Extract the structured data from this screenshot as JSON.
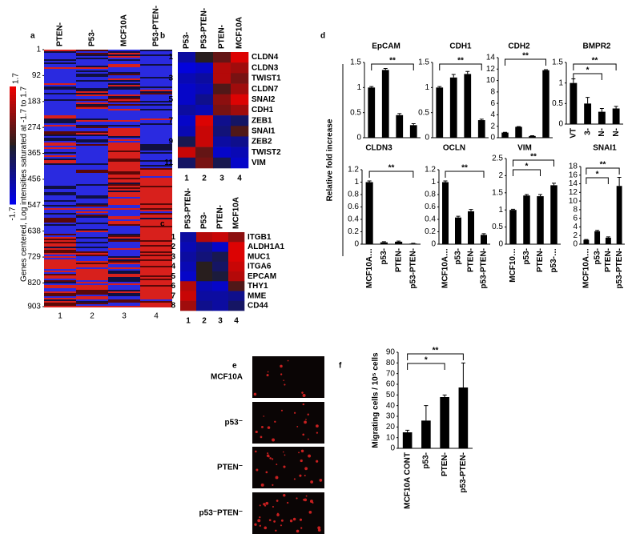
{
  "chart_data": [
    {
      "type": "heatmap-overview",
      "panel": "a",
      "columns": [
        "PTEN-",
        "P53-",
        "MCF10A",
        "P53-PTEN-"
      ],
      "yticks": [
        1,
        92,
        183,
        274,
        365,
        456,
        547,
        638,
        729,
        820,
        903
      ],
      "ylim": [
        1,
        903
      ],
      "column_numbers": [
        1,
        2,
        3,
        4
      ],
      "clim": [
        -1.7,
        1.7
      ],
      "colorbar_label": "Genes centered, Log intensities saturated at -1.7 to 1.7"
    },
    {
      "type": "heatmap",
      "panel": "b",
      "columns": [
        "P53-",
        "P53-PTEN-",
        "PTEN-",
        "MCF10A"
      ],
      "rows": [
        "CLDN4",
        "CLDN3",
        "TWIST1",
        "CLDN7",
        "SNAI2",
        "CDH1",
        "ZEB1",
        "SNAI1",
        "ZEB2",
        "TWIST2",
        "VIM"
      ],
      "row_numbers": [
        1,
        null,
        3,
        null,
        5,
        null,
        7,
        null,
        9,
        null,
        11
      ],
      "column_numbers": [
        1,
        2,
        3,
        4
      ],
      "clim": [
        -1,
        1
      ],
      "values": [
        [
          -0.6,
          0,
          0.3,
          0.9
        ],
        [
          -0.9,
          -0.8,
          0.7,
          0.6
        ],
        [
          -0.7,
          -0.6,
          0.7,
          0.4
        ],
        [
          -0.8,
          -0.7,
          0.2,
          0.6
        ],
        [
          -0.8,
          -0.5,
          0.5,
          0.9
        ],
        [
          -0.6,
          -0.7,
          0.4,
          0.6
        ],
        [
          -0.8,
          0.9,
          -0.5,
          -0.3
        ],
        [
          -0.7,
          0.8,
          -0.4,
          0.2
        ],
        [
          -0.2,
          0.8,
          -0.6,
          -0.5
        ],
        [
          0.8,
          0.3,
          -0.8,
          -0.7
        ],
        [
          -0.3,
          0.4,
          -0.2,
          -0.8
        ]
      ]
    },
    {
      "type": "heatmap",
      "panel": "c",
      "columns": [
        "P53-PTEN-",
        "P53-",
        "PTEN-",
        "MCF10A"
      ],
      "rows": [
        "ITGB1",
        "ALDH1A1",
        "MUC1",
        "ITGA6",
        "EPCAM",
        "THY1",
        "MME",
        "CD44"
      ],
      "row_numbers": [
        1,
        2,
        3,
        4,
        5,
        6,
        7,
        8
      ],
      "column_numbers": [
        1,
        2,
        3,
        4
      ],
      "clim": [
        -1,
        1
      ],
      "values": [
        [
          -0.6,
          0.7,
          0.8,
          0.5
        ],
        [
          -0.7,
          -0.5,
          -0.8,
          0.9
        ],
        [
          -0.6,
          -0.4,
          -0.2,
          0.9
        ],
        [
          -0.7,
          0,
          -0.3,
          0.8
        ],
        [
          -0.8,
          0,
          -0.1,
          0.7
        ],
        [
          0.7,
          -0.7,
          -0.8,
          0.2
        ],
        [
          0.8,
          -0.6,
          -0.6,
          -0.5
        ],
        [
          0.6,
          -0.5,
          -0.6,
          -0.3
        ]
      ]
    },
    {
      "type": "bar",
      "panel": "d",
      "ylabel": "Relative fold increase",
      "title": "EpCAM",
      "categories": [
        null,
        null,
        null,
        null
      ],
      "values": [
        1.0,
        1.35,
        0.45,
        0.25
      ],
      "errors": [
        0.02,
        0.03,
        0.03,
        0.03
      ],
      "ylim": [
        0,
        1.5
      ],
      "yticks": [
        0,
        0.5,
        1,
        1.5
      ],
      "color": "#000000",
      "annotations": [
        "**"
      ]
    },
    {
      "type": "bar",
      "title": "CDH1",
      "categories": [
        null,
        null,
        null,
        null
      ],
      "values": [
        1.0,
        1.2,
        1.27,
        0.35
      ],
      "errors": [
        0.02,
        0.06,
        0.05,
        0.02
      ],
      "ylim": [
        0,
        1.5
      ],
      "yticks": [
        0,
        0.5,
        1,
        1.5
      ],
      "color": "#000000",
      "annotations": [
        "**"
      ]
    },
    {
      "type": "bar",
      "title": "CDH2",
      "categories": [
        null,
        null,
        null,
        null
      ],
      "values": [
        0.9,
        1.9,
        0.3,
        11.8
      ],
      "errors": [
        0.05,
        0.05,
        0.05,
        0.1
      ],
      "ylim": [
        0,
        14
      ],
      "yticks": [
        0,
        2,
        4,
        6,
        8,
        10,
        12,
        14
      ],
      "color": "#000000",
      "annotations": [
        "**"
      ]
    },
    {
      "type": "bar",
      "title": "BMPR2",
      "categories": [
        "VT",
        "3-",
        "N-",
        "N-"
      ],
      "values": [
        1.0,
        0.5,
        0.3,
        0.38
      ],
      "errors": [
        0.1,
        0.15,
        0.08,
        0.05
      ],
      "ylim": [
        0,
        1.5
      ],
      "yticks": [
        0,
        0.5,
        1,
        1.5
      ],
      "color": "#000000",
      "annotations": [
        "*",
        "**"
      ]
    },
    {
      "type": "bar",
      "title": "CLDN3",
      "categories": [
        "MCF10A…",
        "p53-",
        "PTEN-",
        "p53-PTEN-"
      ],
      "values": [
        1.0,
        0.03,
        0.04,
        0.01
      ],
      "errors": [
        0.02,
        0.01,
        0.01,
        0.005
      ],
      "ylim": [
        0,
        1.2
      ],
      "yticks": [
        0,
        0.2,
        0.4,
        0.6,
        0.8,
        1,
        1.2
      ],
      "color": "#000000",
      "annotations": [
        "**"
      ]
    },
    {
      "type": "bar",
      "title": "OCLN",
      "categories": [
        "MCF10A…",
        "p53-",
        "PTEN-",
        "p53-PTEN-"
      ],
      "values": [
        1.0,
        0.43,
        0.53,
        0.15
      ],
      "errors": [
        0.02,
        0.02,
        0.03,
        0.02
      ],
      "ylim": [
        0,
        1.2
      ],
      "yticks": [
        0,
        0.2,
        0.4,
        0.6,
        0.8,
        1,
        1.2
      ],
      "color": "#000000",
      "annotations": [
        "**"
      ]
    },
    {
      "type": "bar",
      "title": "VIM",
      "categories": [
        "MCF10…",
        "p53-",
        "PTEN-",
        "p53-…"
      ],
      "values": [
        1.0,
        1.42,
        1.4,
        1.72
      ],
      "errors": [
        0.02,
        0.03,
        0.05,
        0.06
      ],
      "ylim": [
        0,
        2.5
      ],
      "yticks": [
        0,
        0.5,
        1,
        1.5,
        2,
        2.5
      ],
      "color": "#000000",
      "annotations": [
        "*",
        "**"
      ]
    },
    {
      "type": "bar",
      "title": "SNAI1",
      "categories": [
        "MCF10A…",
        "p53-",
        "PTEN-",
        "p53-PTEN-"
      ],
      "values": [
        1.0,
        3.0,
        1.5,
        13.5
      ],
      "errors": [
        0.1,
        0.2,
        0.2,
        2.0
      ],
      "ylim": [
        0,
        18
      ],
      "yticks": [
        0,
        2,
        4,
        6,
        8,
        10,
        12,
        14,
        16,
        18
      ],
      "color": "#000000",
      "annotations": [
        "*",
        "**"
      ]
    },
    {
      "type": "images",
      "panel": "e",
      "labels": [
        "MCF10A",
        "p53⁻",
        "PTEN⁻",
        "p53⁻PTEN⁻"
      ]
    },
    {
      "type": "bar",
      "panel": "f",
      "ylabel": "Migrating cells / 10⁵ cells",
      "categories": [
        "MCF10A CONT",
        "p53-",
        "PTEN-",
        "p53-PTEN-"
      ],
      "values": [
        15,
        26,
        48,
        57
      ],
      "errors": [
        2,
        14,
        2,
        23
      ],
      "ylim": [
        0,
        90
      ],
      "yticks": [
        0,
        10,
        20,
        30,
        40,
        50,
        60,
        70,
        80,
        90
      ],
      "color": "#000000",
      "annotations": [
        "*",
        "**"
      ]
    }
  ]
}
